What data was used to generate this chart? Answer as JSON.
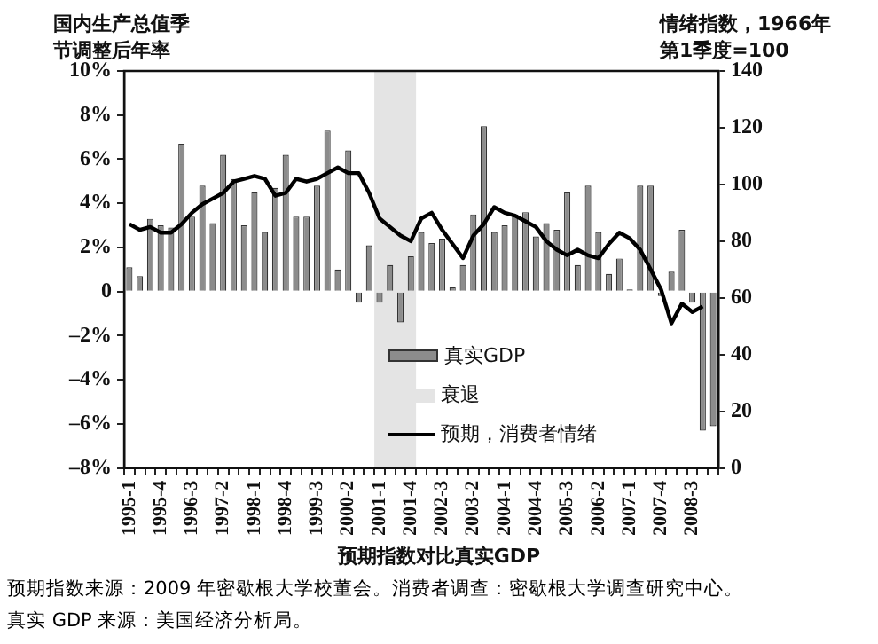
{
  "chart_data": {
    "type": "bar",
    "title": "预期指数对比真实GDP",
    "ylabel": "国内生产总值季节调整后年率",
    "y2label": "情绪指数，1966年第1季度=100",
    "annotations": [
      "预期指数来源：2009 年密歇根大学校董会。消费者调查：密歇根大学调查研究中心。",
      "真实 GDP 来源：美国经济分析局。"
    ],
    "categories": [
      "1995-1",
      null,
      null,
      "1995-4",
      null,
      null,
      "1996-3",
      null,
      null,
      "1997-2",
      null,
      null,
      "1998-1",
      null,
      null,
      "1998-4",
      null,
      null,
      "1999-3",
      null,
      null,
      "2000-2",
      null,
      null,
      "2001-1",
      null,
      null,
      "2001-4",
      null,
      null,
      "2002-3",
      null,
      null,
      "2003-2",
      null,
      null,
      "2004-1",
      null,
      null,
      "2004-4",
      null,
      null,
      "2005-3",
      null,
      null,
      "2006-2",
      null,
      null,
      "2007-1",
      null,
      null,
      "2007-4",
      null,
      null,
      "2008-3",
      null,
      null
    ],
    "series": [
      {
        "name": "真实GDP",
        "color": "#8c8c8c",
        "values": [
          1.1,
          0.7,
          3.3,
          3.0,
          2.9,
          6.7,
          3.4,
          4.8,
          3.1,
          6.2,
          5.1,
          3.0,
          4.5,
          2.7,
          4.7,
          6.2,
          3.4,
          3.4,
          4.8,
          7.3,
          1.0,
          6.4,
          -0.5,
          2.1,
          -0.5,
          1.2,
          -1.4,
          1.6,
          2.7,
          2.2,
          2.4,
          0.2,
          1.2,
          3.5,
          7.5,
          2.7,
          3.0,
          3.5,
          3.6,
          2.5,
          3.1,
          2.8,
          4.5,
          1.2,
          4.8,
          2.7,
          0.8,
          1.5,
          0.1,
          4.8,
          4.8,
          -0.2,
          0.9,
          2.8,
          -0.5,
          -6.3,
          -6.1
        ]
      },
      {
        "name": "预期，消费者情绪",
        "type": "line",
        "axis": "y2",
        "color": "#000000",
        "values": [
          86,
          84,
          85,
          83,
          83,
          86,
          90,
          93,
          95,
          97,
          101,
          102,
          103,
          102,
          96,
          97,
          102,
          101,
          102,
          104,
          106,
          104,
          104,
          97,
          88,
          85,
          82,
          80,
          88,
          90,
          84,
          79,
          74,
          82,
          86,
          92,
          90,
          89,
          87,
          85,
          80,
          77,
          75,
          77,
          75,
          74,
          79,
          83,
          81,
          77,
          70,
          63,
          51,
          58,
          55,
          57,
          null
        ]
      }
    ],
    "bands": [
      {
        "axis": "x",
        "from": "2001-1",
        "to": "2001-4",
        "label": "衰退",
        "color": "#e4e4e4"
      }
    ],
    "ylim": [
      -8,
      10
    ],
    "yticks": [
      {
        "value": -8,
        "label": "–8%"
      },
      {
        "value": -6,
        "label": "–6%"
      },
      {
        "value": -4,
        "label": "–4%"
      },
      {
        "value": -2,
        "label": "–2%"
      },
      0,
      {
        "value": 2,
        "label": "2%"
      },
      {
        "value": 4,
        "label": "4%"
      },
      {
        "value": 6,
        "label": "6%"
      },
      {
        "value": 8,
        "label": "8%"
      },
      {
        "value": 10,
        "label": "10%"
      }
    ],
    "y2lim": [
      0,
      140
    ],
    "y2ticks": [
      0,
      20,
      40,
      60,
      80,
      100,
      120,
      140
    ],
    "grid": false,
    "legend": "bottom",
    "marker": "none"
  }
}
